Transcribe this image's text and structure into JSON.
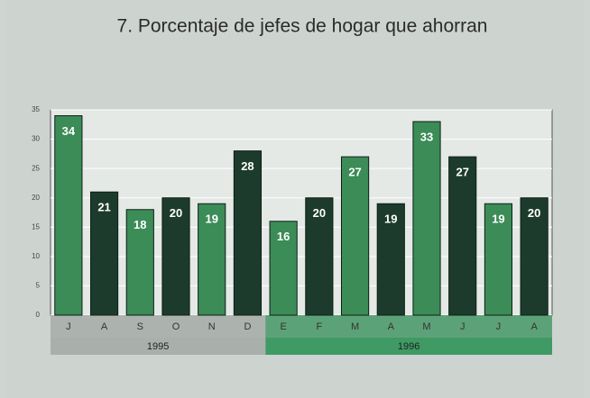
{
  "chart_data": {
    "type": "bar",
    "title": "7. Porcentaje de jefes de hogar que ahorran",
    "categories": [
      "J",
      "A",
      "S",
      "O",
      "N",
      "D",
      "E",
      "F",
      "M",
      "A",
      "M",
      "J",
      "J",
      "A"
    ],
    "values": [
      34,
      21,
      18,
      20,
      19,
      28,
      16,
      20,
      27,
      19,
      33,
      27,
      19,
      20
    ],
    "colors": [
      "#3b8c57",
      "#1d3b2c",
      "#3b8c57",
      "#1d3b2c",
      "#3b8c57",
      "#1d3b2c",
      "#3b8c57",
      "#1d3b2c",
      "#3b8c57",
      "#1d3b2c",
      "#3b8c57",
      "#1d3b2c",
      "#3b8c57",
      "#1d3b2c"
    ],
    "groups": [
      {
        "label": "1995",
        "count": 6,
        "color": "#a9b0ab"
      },
      {
        "label": "1996",
        "count": 8,
        "color": "#3f9a63"
      }
    ],
    "ylim": [
      0,
      35
    ],
    "yticks": [
      0,
      5,
      10,
      15,
      20,
      25,
      30,
      35
    ],
    "grid": true
  }
}
